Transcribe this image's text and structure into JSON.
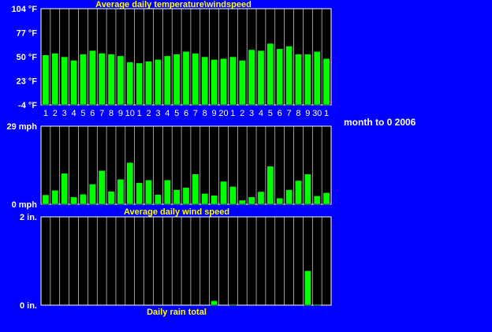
{
  "side_label": "month to 0 2006",
  "colors": {
    "background": "#0000ff",
    "plot_bg": "#000000",
    "bar": "#00ff00",
    "title_text": "#ffff00",
    "axis_text": "#ffffff",
    "grid": "#ffffff"
  },
  "chart_data": [
    {
      "type": "bar",
      "title": "Average daily temperature\\windspeed",
      "categories": [
        "1",
        "2",
        "3",
        "4",
        "5",
        "6",
        "7",
        "8",
        "9",
        "10",
        "1",
        "2",
        "3",
        "4",
        "5",
        "6",
        "7",
        "8",
        "9",
        "20",
        "1",
        "2",
        "3",
        "4",
        "5",
        "6",
        "7",
        "8",
        "9",
        "30",
        "1"
      ],
      "ylim": [
        -4,
        104
      ],
      "y_ticks": [
        "104 °F",
        "77 °F",
        "50 °F",
        "23 °F",
        "-4 °F"
      ],
      "values": [
        52,
        54,
        50,
        46,
        53,
        57,
        54,
        53,
        51,
        44,
        43,
        45,
        47,
        51,
        53,
        56,
        54,
        50,
        47,
        48,
        50,
        46,
        58,
        57,
        65,
        59,
        62,
        53,
        53,
        56,
        48
      ],
      "grid": true
    },
    {
      "type": "bar",
      "title": "Average daily wind speed",
      "ylim": [
        0,
        29
      ],
      "y_ticks": [
        "29 mph",
        "0 mph"
      ],
      "values": [
        3.5,
        5.2,
        11.5,
        2.7,
        3.7,
        7.5,
        12.5,
        4.8,
        9.3,
        15.5,
        8.0,
        9.0,
        3.6,
        9.0,
        5.4,
        6.2,
        11.2,
        4.0,
        3.3,
        8.5,
        6.6,
        1.5,
        2.7,
        4.7,
        14.1,
        2.3,
        5.4,
        8.8,
        11.2,
        3.1,
        4.3
      ],
      "grid": true
    },
    {
      "type": "bar",
      "title": "Daily rain total",
      "ylim": [
        0,
        2
      ],
      "y_ticks": [
        "2 in.",
        "0 in."
      ],
      "values": [
        0,
        0,
        0,
        0,
        0,
        0,
        0,
        0,
        0,
        0,
        0,
        0,
        0,
        0,
        0,
        0,
        0,
        0,
        0.1,
        0,
        0.02,
        0,
        0,
        0,
        0,
        0,
        0,
        0,
        0.78,
        0.02,
        0
      ],
      "grid": true
    }
  ]
}
